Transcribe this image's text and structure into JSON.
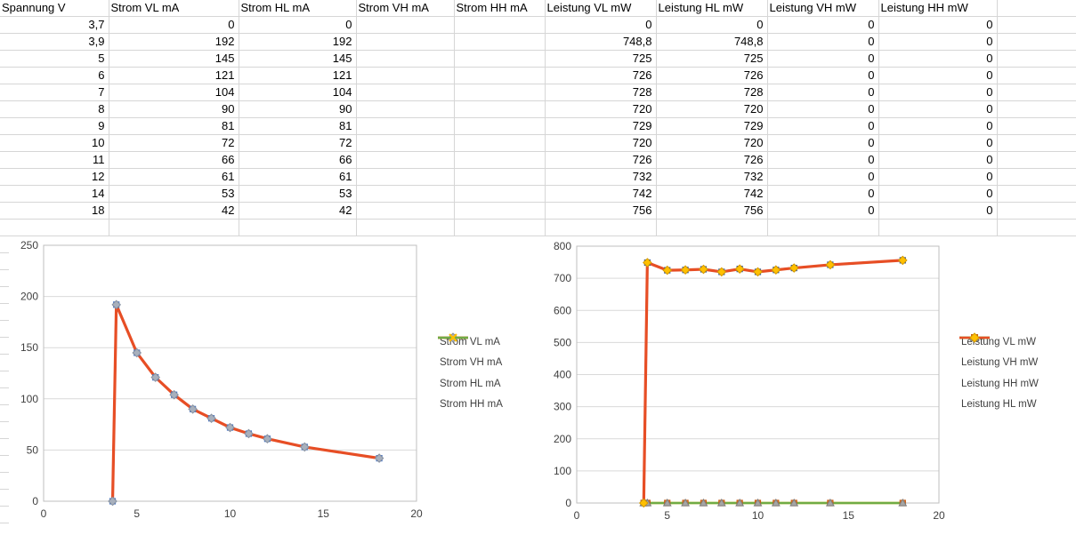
{
  "table": {
    "header": [
      "Spannung V",
      "Strom VL mA",
      "Strom HL mA",
      "Strom VH mA",
      "Strom HH mA",
      "Leistung VL mW",
      "Leistung HL mW",
      "Leistung VH mW",
      "Leistung HH mW",
      ""
    ],
    "rows": [
      [
        "3,7",
        "0",
        "0",
        "",
        "",
        "0",
        "0",
        "0",
        "0",
        ""
      ],
      [
        "3,9",
        "192",
        "192",
        "",
        "",
        "748,8",
        "748,8",
        "0",
        "0",
        ""
      ],
      [
        "5",
        "145",
        "145",
        "",
        "",
        "725",
        "725",
        "0",
        "0",
        ""
      ],
      [
        "6",
        "121",
        "121",
        "",
        "",
        "726",
        "726",
        "0",
        "0",
        ""
      ],
      [
        "7",
        "104",
        "104",
        "",
        "",
        "728",
        "728",
        "0",
        "0",
        ""
      ],
      [
        "8",
        "90",
        "90",
        "",
        "",
        "720",
        "720",
        "0",
        "0",
        ""
      ],
      [
        "9",
        "81",
        "81",
        "",
        "",
        "729",
        "729",
        "0",
        "0",
        ""
      ],
      [
        "10",
        "72",
        "72",
        "",
        "",
        "720",
        "720",
        "0",
        "0",
        ""
      ],
      [
        "11",
        "66",
        "66",
        "",
        "",
        "726",
        "726",
        "0",
        "0",
        ""
      ],
      [
        "12",
        "61",
        "61",
        "",
        "",
        "732",
        "732",
        "0",
        "0",
        ""
      ],
      [
        "14",
        "53",
        "53",
        "",
        "",
        "742",
        "742",
        "0",
        "0",
        ""
      ],
      [
        "18",
        "42",
        "42",
        "",
        "",
        "756",
        "756",
        "0",
        "0",
        ""
      ]
    ]
  },
  "colors": {
    "sheet_grid": "#d6d6d6",
    "chart_grid": "#d9d9d9",
    "plot_border": "#bfbfbf",
    "blue": "#2e5fa3",
    "blue_marker": "#4472c4",
    "yellow": "#ffc000",
    "orange": "#ed7d31",
    "red": "#e74e25",
    "green": "#6fac46",
    "gray": "#a5a5a5"
  },
  "chart_data": [
    {
      "id": "strom",
      "type": "line",
      "title": "",
      "xlabel": "",
      "ylabel": "",
      "grid": true,
      "legend_position": "right",
      "xlim": [
        0,
        20
      ],
      "ylim": [
        0,
        250
      ],
      "x_ticks": [
        0,
        5,
        10,
        15,
        20
      ],
      "y_ticks": [
        0,
        50,
        100,
        150,
        200,
        250
      ],
      "x": [
        3.7,
        3.9,
        5,
        6,
        7,
        8,
        9,
        10,
        11,
        12,
        14,
        18
      ],
      "series": [
        {
          "name": "Strom VL mA",
          "values": [
            0,
            192,
            145,
            121,
            104,
            90,
            81,
            72,
            66,
            61,
            53,
            42
          ],
          "line_color": "#2e5fa3",
          "line_width": 2.5,
          "marker": "square",
          "marker_fill": "#7e99c9",
          "marker_stroke": "#4472c4"
        },
        {
          "name": "Strom VH mA",
          "values": [],
          "line_color": "#ffc000",
          "line_width": 2.5,
          "marker": "square",
          "marker_fill": "#ed7d31",
          "marker_stroke": "#c55a11"
        },
        {
          "name": "Strom HL mA",
          "values": [
            0,
            192,
            145,
            121,
            104,
            90,
            81,
            72,
            66,
            61,
            53,
            42
          ],
          "line_color": "#e74e25",
          "line_width": 3.2,
          "marker": "diamond",
          "marker_fill": "#a8b0bd",
          "marker_stroke": "#8691a1"
        },
        {
          "name": "Strom HH mA",
          "values": [],
          "line_color": "#6fac46",
          "line_width": 2.5,
          "marker": "x",
          "marker_fill": "#ffc000",
          "marker_stroke": "#ffc000"
        }
      ]
    },
    {
      "id": "leistung",
      "type": "line",
      "title": "",
      "xlabel": "",
      "ylabel": "",
      "grid": true,
      "legend_position": "right",
      "xlim": [
        0,
        20
      ],
      "ylim": [
        0,
        800
      ],
      "x_ticks": [
        0,
        5,
        10,
        15,
        20
      ],
      "y_ticks": [
        0,
        100,
        200,
        300,
        400,
        500,
        600,
        700,
        800
      ],
      "x": [
        3.7,
        3.9,
        5,
        6,
        7,
        8,
        9,
        10,
        11,
        12,
        14,
        18
      ],
      "series": [
        {
          "name": "Leistung VL mW",
          "values": [
            0,
            748.8,
            725,
            726,
            728,
            720,
            729,
            720,
            726,
            732,
            742,
            756
          ],
          "line_color": "#2e5fa3",
          "line_width": 2.5,
          "marker": "square",
          "marker_fill": "#4472c4",
          "marker_stroke": "#2f5597"
        },
        {
          "name": "Leistung VH mW",
          "values": [
            0,
            0,
            0,
            0,
            0,
            0,
            0,
            0,
            0,
            0,
            0,
            0
          ],
          "line_color": "#ffc000",
          "line_width": 2.5,
          "marker": "square",
          "marker_fill": "#ed7d31",
          "marker_stroke": "#c55a11"
        },
        {
          "name": "Leistung HH mW",
          "values": [
            0,
            0,
            0,
            0,
            0,
            0,
            0,
            0,
            0,
            0,
            0,
            0
          ],
          "line_color": "#6fac46",
          "line_width": 2.5,
          "marker": "triangle",
          "marker_fill": "#a5a5a5",
          "marker_stroke": "#7f7f7f"
        },
        {
          "name": "Leistung HL mW",
          "values": [
            0,
            748.8,
            725,
            726,
            728,
            720,
            729,
            720,
            726,
            732,
            742,
            756
          ],
          "line_color": "#e74e25",
          "line_width": 3.2,
          "marker": "diamond",
          "marker_fill": "#ffc000",
          "marker_stroke": "#d49a00"
        }
      ]
    }
  ]
}
